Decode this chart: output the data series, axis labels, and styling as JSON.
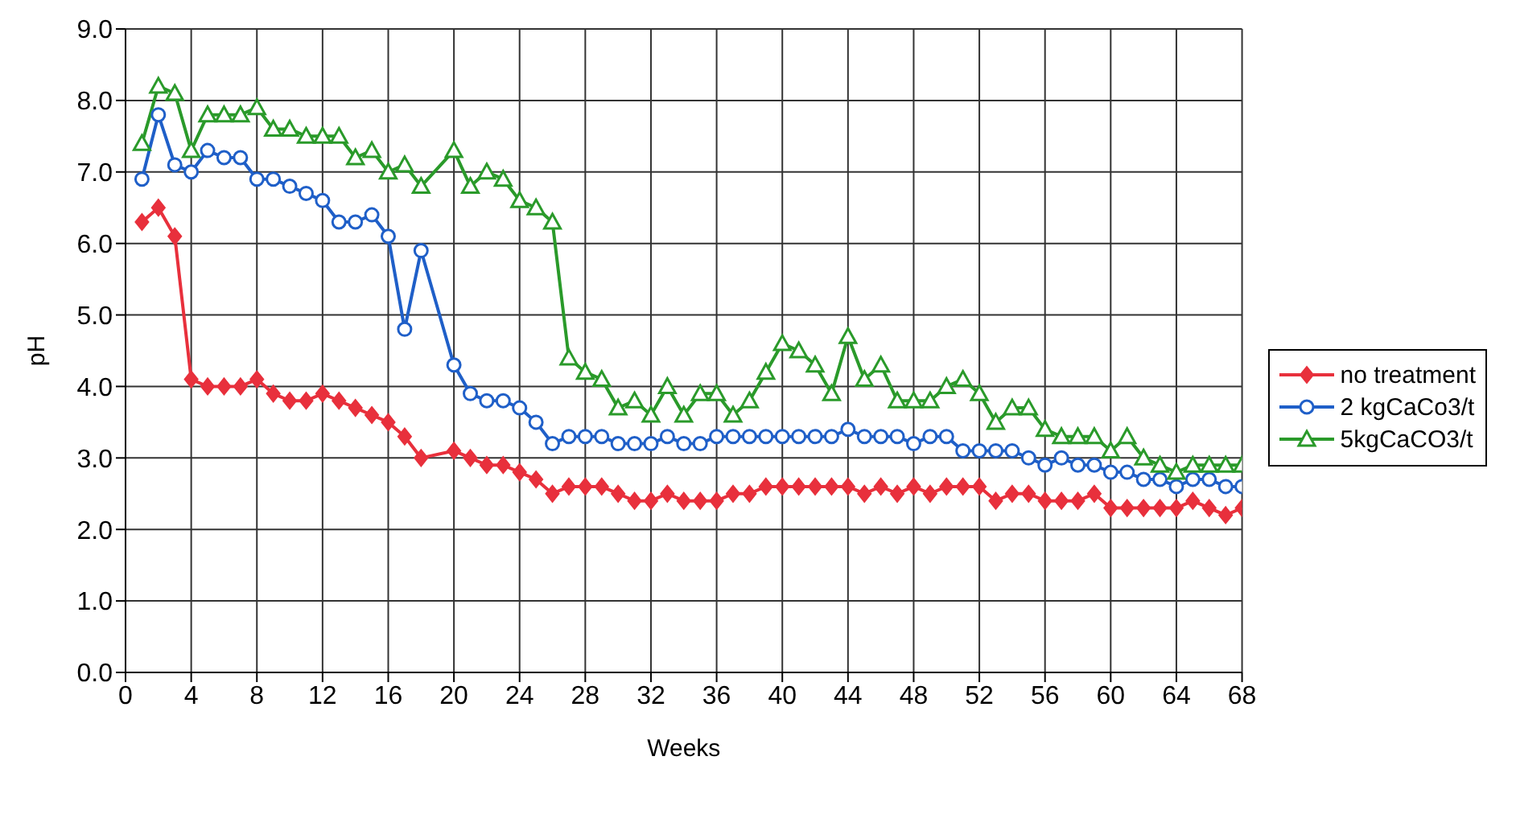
{
  "chart_data": {
    "type": "line",
    "xlabel": "Weeks",
    "ylabel": "pH",
    "x": [
      1,
      2,
      3,
      4,
      5,
      6,
      7,
      8,
      9,
      10,
      11,
      12,
      13,
      14,
      15,
      16,
      17,
      18,
      20,
      21,
      22,
      23,
      24,
      25,
      26,
      27,
      28,
      29,
      30,
      31,
      32,
      33,
      34,
      35,
      36,
      37,
      38,
      39,
      40,
      41,
      42,
      43,
      44,
      45,
      46,
      47,
      48,
      49,
      50,
      51,
      52,
      53,
      54,
      55,
      56,
      57,
      58,
      59,
      60,
      61,
      62,
      63,
      64,
      65,
      66,
      67,
      68
    ],
    "series": [
      {
        "name": "no treatment",
        "color": "#e8303c",
        "marker": "diamond",
        "values": [
          6.3,
          6.5,
          6.1,
          4.1,
          4.0,
          4.0,
          4.0,
          4.1,
          3.9,
          3.8,
          3.8,
          3.9,
          3.8,
          3.7,
          3.6,
          3.5,
          3.3,
          3.0,
          3.1,
          3.0,
          2.9,
          2.9,
          2.8,
          2.7,
          2.5,
          2.6,
          2.6,
          2.6,
          2.5,
          2.4,
          2.4,
          2.5,
          2.4,
          2.4,
          2.4,
          2.5,
          2.5,
          2.6,
          2.6,
          2.6,
          2.6,
          2.6,
          2.6,
          2.5,
          2.6,
          2.5,
          2.6,
          2.5,
          2.6,
          2.6,
          2.6,
          2.4,
          2.5,
          2.5,
          2.4,
          2.4,
          2.4,
          2.5,
          2.3,
          2.3,
          2.3,
          2.3,
          2.3,
          2.4,
          2.3,
          2.2,
          2.3
        ]
      },
      {
        "name": "2 kgCaCo3/t",
        "color": "#1f5fc8",
        "marker": "circle",
        "values": [
          6.9,
          7.8,
          7.1,
          7.0,
          7.3,
          7.2,
          7.2,
          6.9,
          6.9,
          6.8,
          6.7,
          6.6,
          6.3,
          6.3,
          6.4,
          6.1,
          4.8,
          5.9,
          4.3,
          3.9,
          3.8,
          3.8,
          3.7,
          3.5,
          3.2,
          3.3,
          3.3,
          3.3,
          3.2,
          3.2,
          3.2,
          3.3,
          3.2,
          3.2,
          3.3,
          3.3,
          3.3,
          3.3,
          3.3,
          3.3,
          3.3,
          3.3,
          3.4,
          3.3,
          3.3,
          3.3,
          3.2,
          3.3,
          3.3,
          3.1,
          3.1,
          3.1,
          3.1,
          3.0,
          2.9,
          3.0,
          2.9,
          2.9,
          2.8,
          2.8,
          2.7,
          2.7,
          2.6,
          2.7,
          2.7,
          2.6,
          2.6
        ]
      },
      {
        "name": "5kgCaCO3/t",
        "color": "#2a9a2a",
        "marker": "triangle",
        "values": [
          7.4,
          8.2,
          8.1,
          7.3,
          7.8,
          7.8,
          7.8,
          7.9,
          7.6,
          7.6,
          7.5,
          7.5,
          7.5,
          7.2,
          7.3,
          7.0,
          7.1,
          6.8,
          7.3,
          6.8,
          7.0,
          6.9,
          6.6,
          6.5,
          6.3,
          4.4,
          4.2,
          4.1,
          3.7,
          3.8,
          3.6,
          4.0,
          3.6,
          3.9,
          3.9,
          3.6,
          3.8,
          4.2,
          4.6,
          4.5,
          4.3,
          3.9,
          4.7,
          4.1,
          4.3,
          3.8,
          3.8,
          3.8,
          4.0,
          4.1,
          3.9,
          3.5,
          3.7,
          3.7,
          3.4,
          3.3,
          3.3,
          3.3,
          3.1,
          3.3,
          3.0,
          2.9,
          2.8,
          2.9,
          2.9,
          2.9,
          2.9
        ]
      }
    ],
    "xlim": [
      0,
      68
    ],
    "xticks": [
      0,
      4,
      8,
      12,
      16,
      20,
      24,
      28,
      32,
      36,
      40,
      44,
      48,
      52,
      56,
      60,
      64,
      68
    ],
    "ylim": [
      0,
      9
    ],
    "yticks": [
      {
        "value": 0,
        "label": "0.0"
      },
      {
        "value": 1,
        "label": "1.0"
      },
      {
        "value": 2,
        "label": "2.0"
      },
      {
        "value": 3,
        "label": "3.0"
      },
      {
        "value": 4,
        "label": "4.0"
      },
      {
        "value": 5,
        "label": "5.0"
      },
      {
        "value": 6,
        "label": "6.0"
      },
      {
        "value": 7,
        "label": "7.0"
      },
      {
        "value": 8,
        "label": "8.0"
      },
      {
        "value": 9,
        "label": "9.0"
      }
    ],
    "grid": true,
    "legend": "right"
  }
}
